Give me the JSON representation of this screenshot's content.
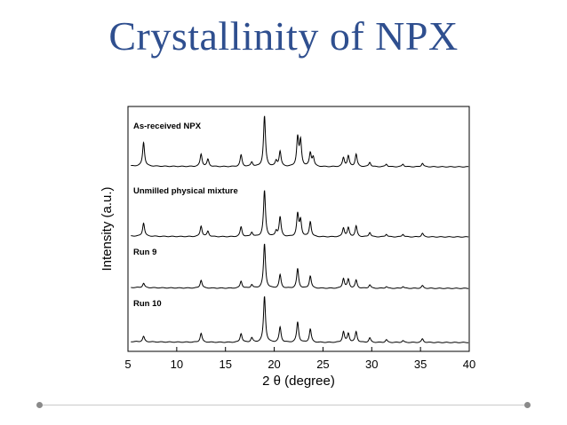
{
  "slide": {
    "title": "Crystallinity of NPX",
    "colors": {
      "title": "#2f4f8f",
      "rule": "#c9c9c9",
      "dot": "#8a8a8a",
      "line": "#000000"
    }
  },
  "chart_data": {
    "type": "line",
    "title": "",
    "xlabel": "2 θ (degree)",
    "ylabel": "Intensity (a.u.)",
    "xlim": [
      5,
      40
    ],
    "xticks": [
      "5",
      "10",
      "15",
      "20",
      "25",
      "30",
      "35",
      "40"
    ],
    "grid": false,
    "legend": "none",
    "series": [
      {
        "name": "As-received NPX",
        "peaks": [
          [
            6.6,
            27
          ],
          [
            12.5,
            14
          ],
          [
            13.2,
            8
          ],
          [
            16.6,
            13
          ],
          [
            17.7,
            5
          ],
          [
            19.0,
            57
          ],
          [
            20.2,
            6
          ],
          [
            20.6,
            17
          ],
          [
            22.4,
            32
          ],
          [
            22.7,
            28
          ],
          [
            23.7,
            15
          ],
          [
            24.0,
            10
          ],
          [
            27.1,
            10
          ],
          [
            27.6,
            12
          ],
          [
            28.4,
            14
          ],
          [
            29.8,
            5
          ],
          [
            31.5,
            3
          ],
          [
            33.2,
            3
          ],
          [
            35.2,
            4
          ]
        ]
      },
      {
        "name": "Unmilled physical mixture",
        "peaks": [
          [
            6.6,
            15
          ],
          [
            12.5,
            12
          ],
          [
            13.2,
            6
          ],
          [
            16.6,
            11
          ],
          [
            17.7,
            5
          ],
          [
            19.0,
            52
          ],
          [
            20.2,
            6
          ],
          [
            20.6,
            22
          ],
          [
            22.4,
            25
          ],
          [
            22.7,
            18
          ],
          [
            23.7,
            17
          ],
          [
            27.1,
            10
          ],
          [
            27.6,
            10
          ],
          [
            28.4,
            12
          ],
          [
            29.8,
            5
          ],
          [
            31.5,
            3
          ],
          [
            33.2,
            3
          ],
          [
            35.2,
            4
          ]
        ]
      },
      {
        "name": "Run 9",
        "peaks": [
          [
            6.6,
            5
          ],
          [
            12.5,
            9
          ],
          [
            16.6,
            8
          ],
          [
            17.7,
            4
          ],
          [
            19.0,
            50
          ],
          [
            20.6,
            15
          ],
          [
            22.4,
            22
          ],
          [
            23.7,
            14
          ],
          [
            27.1,
            11
          ],
          [
            27.6,
            10
          ],
          [
            28.4,
            9
          ],
          [
            29.8,
            4
          ],
          [
            31.5,
            2
          ],
          [
            33.2,
            2
          ],
          [
            35.2,
            3
          ]
        ]
      },
      {
        "name": "Run 10",
        "peaks": [
          [
            6.6,
            6
          ],
          [
            12.5,
            10
          ],
          [
            16.6,
            10
          ],
          [
            17.7,
            5
          ],
          [
            19.0,
            52
          ],
          [
            20.6,
            17
          ],
          [
            22.4,
            23
          ],
          [
            23.7,
            15
          ],
          [
            27.1,
            12
          ],
          [
            27.6,
            10
          ],
          [
            28.4,
            12
          ],
          [
            29.8,
            5
          ],
          [
            31.5,
            3
          ],
          [
            33.2,
            2
          ],
          [
            35.2,
            4
          ]
        ]
      }
    ]
  }
}
